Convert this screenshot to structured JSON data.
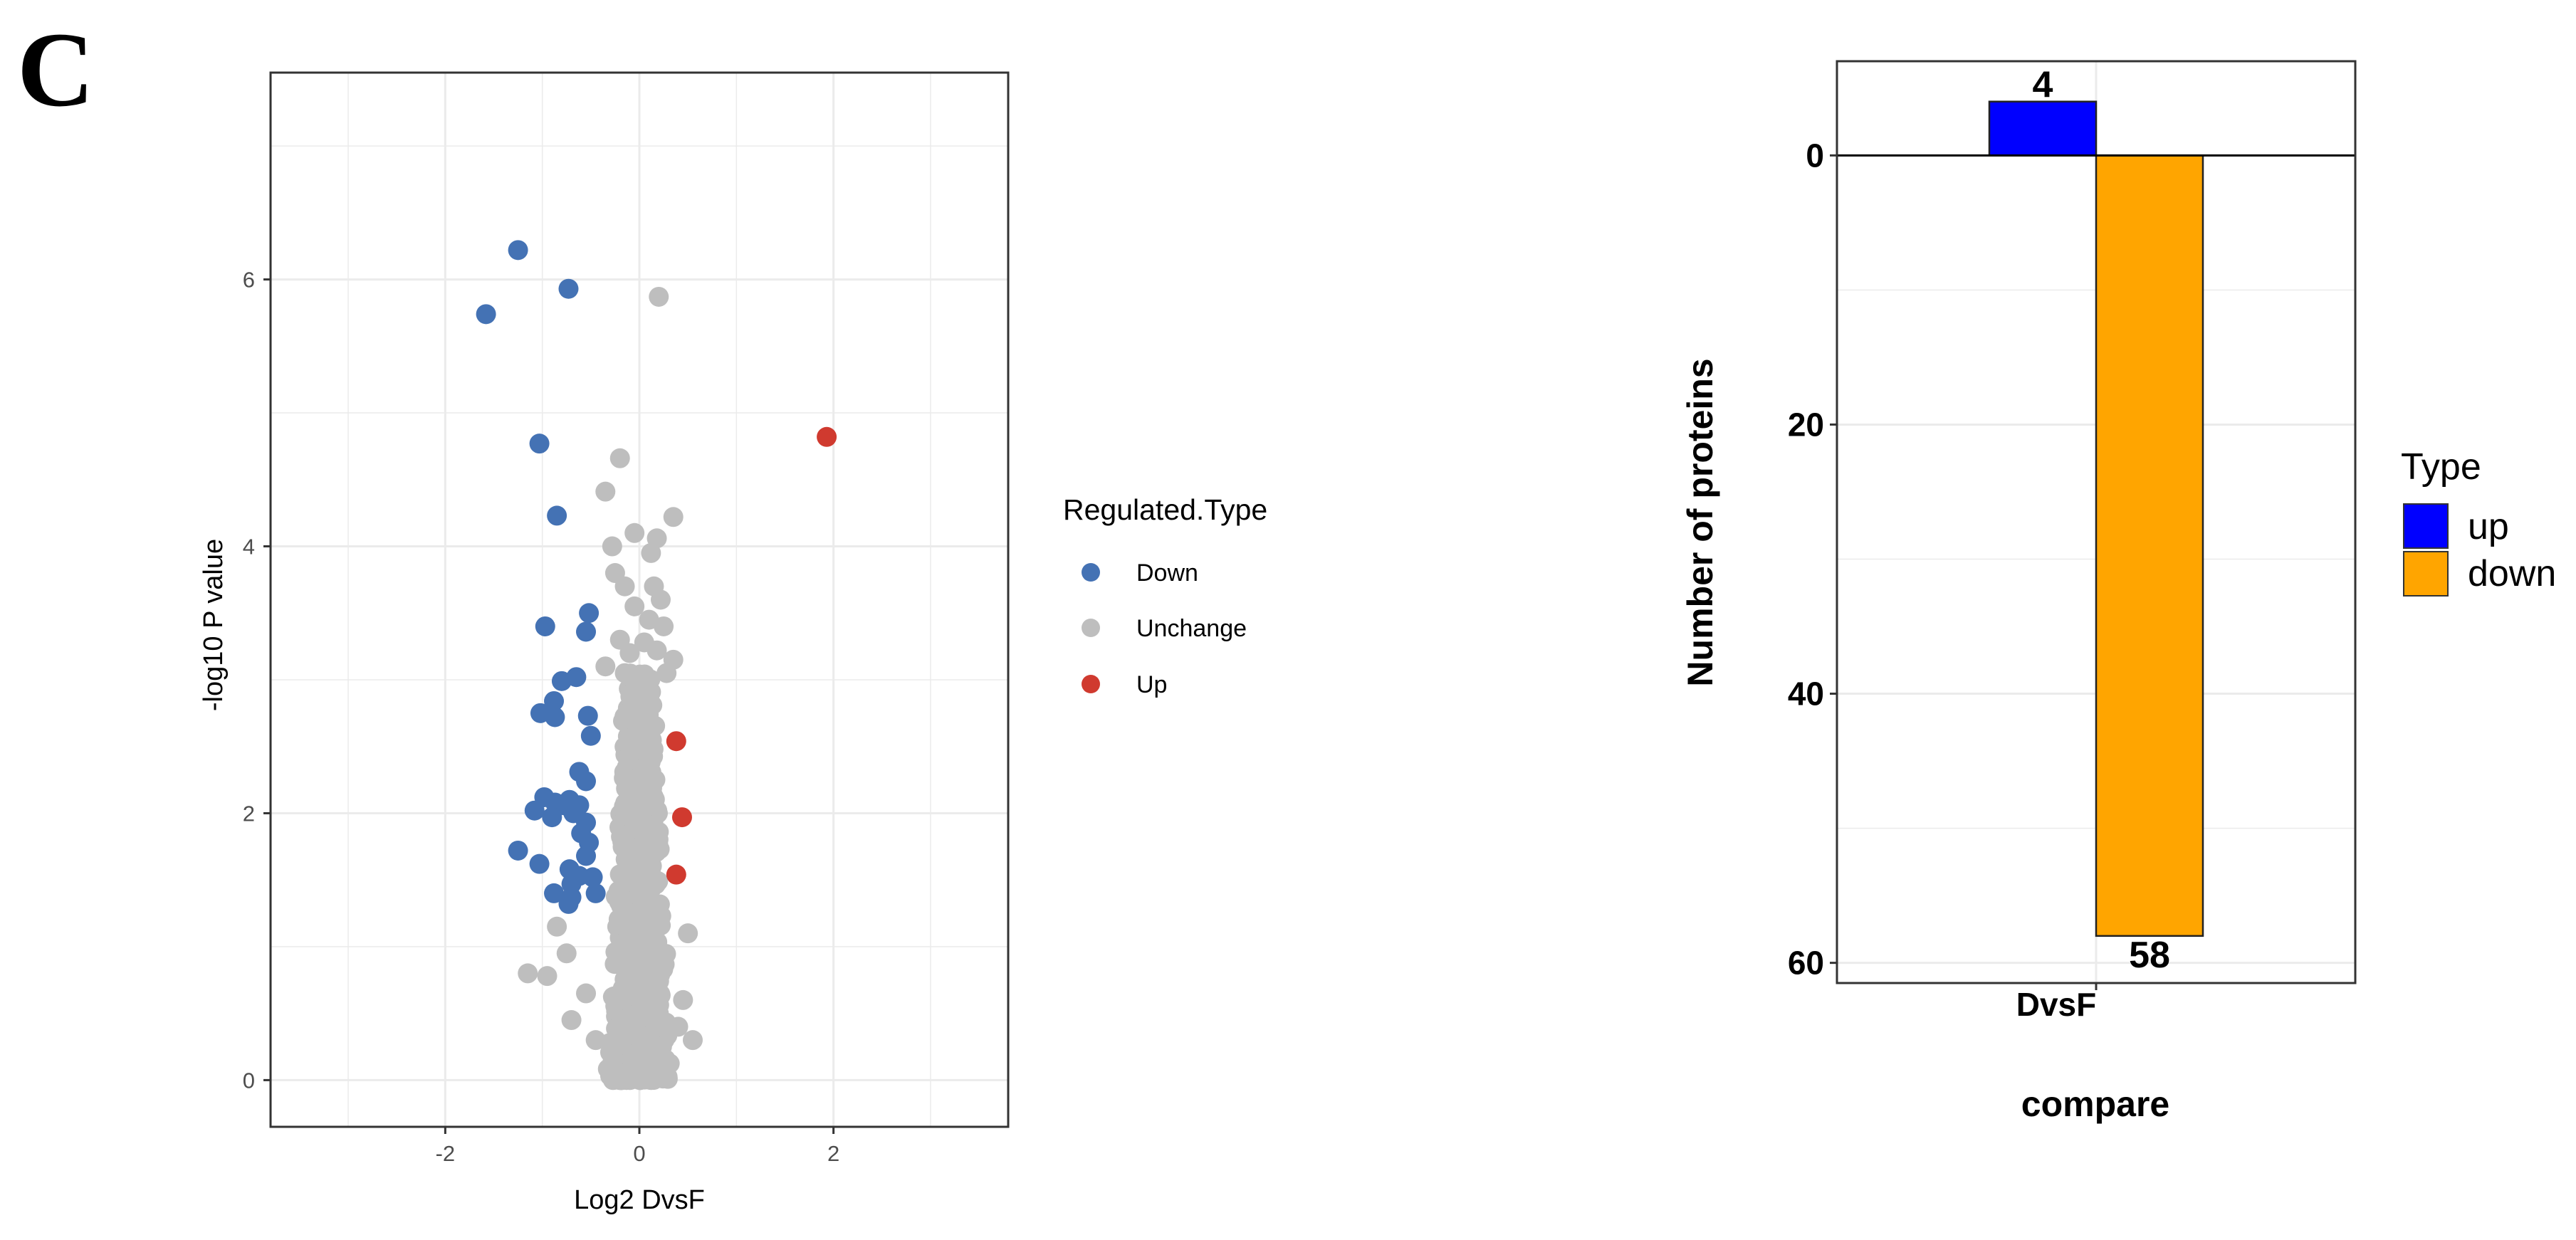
{
  "panel_label": "C",
  "chart_data": [
    {
      "type": "scatter",
      "title": "",
      "xlabel": "Log2 DvsF",
      "ylabel": "-log10 P value",
      "xlim": [
        -3.8,
        3.8
      ],
      "ylim": [
        -0.35,
        7.55
      ],
      "xticks": [
        -2,
        0,
        2
      ],
      "yticks": [
        0,
        2,
        4,
        6
      ],
      "grid": true,
      "legend": {
        "title": "Regulated.Type",
        "position": "right",
        "entries": [
          "Down",
          "Unchange",
          "Up"
        ]
      },
      "colors": {
        "Down": "#4472b4",
        "Unchange": "#bebebe",
        "Up": "#d03a2f"
      },
      "series": [
        {
          "name": "Down",
          "points": [
            [
              -1.25,
              6.22
            ],
            [
              -0.73,
              5.93
            ],
            [
              -1.58,
              5.74
            ],
            [
              -1.03,
              4.77
            ],
            [
              -0.85,
              4.23
            ],
            [
              -0.97,
              3.4
            ],
            [
              -0.52,
              3.5
            ],
            [
              -0.55,
              3.36
            ],
            [
              -0.8,
              2.99
            ],
            [
              -0.65,
              3.02
            ],
            [
              -1.02,
              2.75
            ],
            [
              -0.87,
              2.72
            ],
            [
              -0.88,
              2.84
            ],
            [
              -0.53,
              2.73
            ],
            [
              -0.5,
              2.58
            ],
            [
              -0.62,
              2.31
            ],
            [
              -0.55,
              2.24
            ],
            [
              -0.98,
              2.12
            ],
            [
              -0.87,
              2.08
            ],
            [
              -0.78,
              2.06
            ],
            [
              -0.72,
              2.1
            ],
            [
              -0.62,
              2.06
            ],
            [
              -1.08,
              2.02
            ],
            [
              -0.9,
              1.97
            ],
            [
              -0.68,
              2.0
            ],
            [
              -0.55,
              1.93
            ],
            [
              -0.6,
              1.85
            ],
            [
              -0.52,
              1.78
            ],
            [
              -0.55,
              1.68
            ],
            [
              -1.25,
              1.72
            ],
            [
              -1.03,
              1.62
            ],
            [
              -0.72,
              1.58
            ],
            [
              -0.62,
              1.53
            ],
            [
              -0.7,
              1.47
            ],
            [
              -0.88,
              1.4
            ],
            [
              -0.7,
              1.37
            ],
            [
              -0.73,
              1.32
            ],
            [
              -0.45,
              1.4
            ],
            [
              -0.48,
              1.52
            ]
          ]
        },
        {
          "name": "Up",
          "points": [
            [
              1.93,
              4.82
            ],
            [
              0.38,
              2.54
            ],
            [
              0.44,
              1.97
            ],
            [
              0.38,
              1.54
            ]
          ]
        },
        {
          "name": "Unchange",
          "points": [
            [
              0.2,
              5.87
            ],
            [
              -0.2,
              4.66
            ],
            [
              -0.35,
              4.41
            ],
            [
              0.35,
              4.22
            ],
            [
              -0.05,
              4.1
            ],
            [
              0.18,
              4.06
            ],
            [
              -0.28,
              4.0
            ],
            [
              0.12,
              3.95
            ],
            [
              -0.25,
              3.8
            ],
            [
              0.15,
              3.7
            ],
            [
              -0.15,
              3.7
            ],
            [
              0.22,
              3.6
            ],
            [
              -0.05,
              3.55
            ],
            [
              0.1,
              3.45
            ],
            [
              0.25,
              3.4
            ],
            [
              -0.2,
              3.3
            ],
            [
              0.05,
              3.28
            ],
            [
              0.18,
              3.22
            ],
            [
              -0.1,
              3.2
            ],
            [
              0.35,
              3.15
            ],
            [
              -0.35,
              3.1
            ],
            [
              0.28,
              3.05
            ],
            [
              -0.15,
              3.05
            ],
            [
              -1.15,
              0.8
            ],
            [
              -0.95,
              0.78
            ],
            [
              0.55,
              0.3
            ],
            [
              -0.7,
              0.45
            ],
            [
              -0.55,
              0.65
            ],
            [
              0.45,
              0.6
            ],
            [
              -0.85,
              1.15
            ],
            [
              -0.75,
              0.95
            ],
            [
              0.5,
              1.1
            ],
            [
              -0.45,
              0.3
            ],
            [
              0.4,
              0.4
            ]
          ]
        }
      ],
      "unchange_cloud_note": ""
    },
    {
      "type": "bar",
      "title": "",
      "xlabel": "compare",
      "ylabel": "Number of proteins",
      "categories": [
        "DvsF"
      ],
      "y_reversed": true,
      "ylim": [
        -7,
        61.5
      ],
      "yticks": [
        0,
        20,
        40,
        60
      ],
      "grid": true,
      "legend": {
        "title": "Type",
        "position": "right",
        "entries": [
          "up",
          "down"
        ]
      },
      "colors": {
        "up": "#0000ff",
        "down": "#ffa500"
      },
      "series": [
        {
          "name": "up",
          "values": [
            -4
          ],
          "label": "4"
        },
        {
          "name": "down",
          "values": [
            58
          ],
          "label": "58"
        }
      ]
    }
  ]
}
